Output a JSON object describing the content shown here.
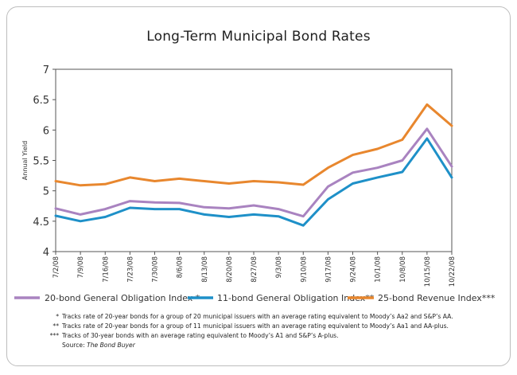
{
  "chart_data": {
    "type": "line",
    "title": "Long-Term Municipal Bond Rates",
    "xlabel": "",
    "ylabel": "Annual Yield",
    "ylim": [
      4,
      7
    ],
    "yticks": [
      "4",
      "4.5",
      "5",
      "5.5",
      "6",
      "6.5",
      "7"
    ],
    "ytick_values": [
      4,
      4.5,
      5,
      5.5,
      6,
      6.5,
      7
    ],
    "categories": [
      "7/2/08",
      "7/9/08",
      "7/16/08",
      "7/23/08",
      "7/30/08",
      "8/6/08",
      "8/13/08",
      "8/20/08",
      "8/27/08",
      "9/3/08",
      "9/10/08",
      "9/17/08",
      "9/24/08",
      "10/1/08",
      "10/8/08",
      "10/15/08",
      "10/22/08"
    ],
    "legend_position": "bottom",
    "grid": false,
    "series": [
      {
        "name": "20-bond General Obligation Index *",
        "color": "#a983c0",
        "values": [
          4.71,
          4.61,
          4.7,
          4.83,
          4.81,
          4.8,
          4.73,
          4.71,
          4.76,
          4.7,
          4.58,
          5.07,
          5.3,
          5.38,
          5.5,
          6.02,
          5.4
        ]
      },
      {
        "name": "11-bond General Obligation Index**",
        "color": "#1e90c8",
        "values": [
          4.59,
          4.5,
          4.57,
          4.72,
          4.7,
          4.7,
          4.61,
          4.57,
          4.61,
          4.58,
          4.43,
          4.86,
          5.12,
          5.22,
          5.31,
          5.86,
          5.22
        ]
      },
      {
        "name": "25-bond Revenue Index***",
        "color": "#e8872e",
        "values": [
          5.16,
          5.09,
          5.11,
          5.22,
          5.16,
          5.2,
          5.16,
          5.12,
          5.16,
          5.14,
          5.1,
          5.38,
          5.59,
          5.69,
          5.84,
          6.42,
          6.07
        ]
      }
    ]
  },
  "notes": [
    {
      "mark": "*",
      "text": "Tracks rate of 20-year bonds for a group of 20 municipal issuers with an average rating equivalent to Moody’s Aa2 and S&P’s AA."
    },
    {
      "mark": "**",
      "text": "Tracks rate of 20-year bonds for a group of 11 municipal issuers with an average rating equivalent to Moody’s Aa1 and AA-plus."
    },
    {
      "mark": "***",
      "text": "Tracks of 30-year bonds with an average rating equivalent to Moody’s A1 and S&P’s A-plus."
    }
  ],
  "source": {
    "label": "Source:",
    "name": "The Bond Buyer"
  }
}
